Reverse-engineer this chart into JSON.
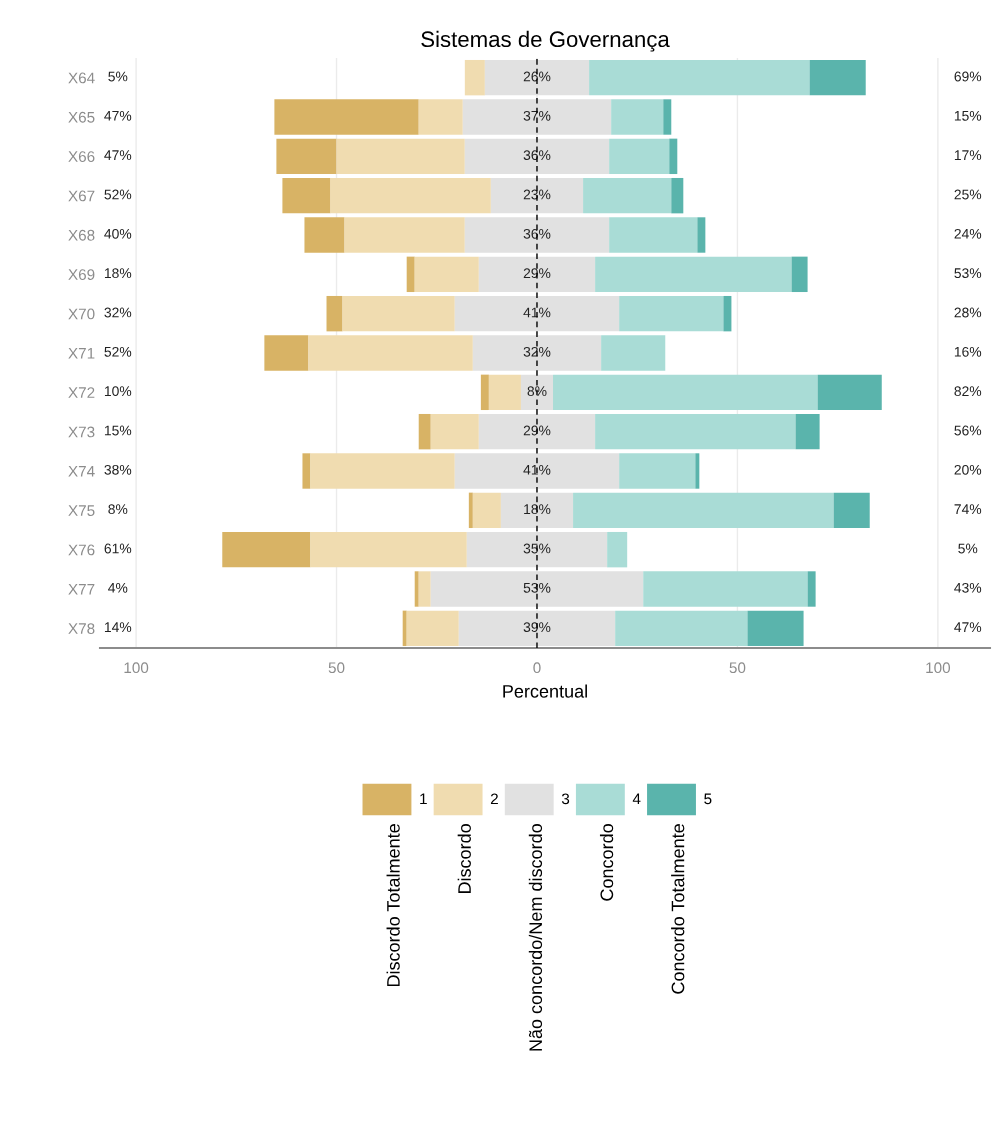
{
  "chart_data": {
    "type": "bar",
    "orientation": "horizontal",
    "title": "Sistemas de Governança",
    "xlabel": "Percentual",
    "categories": [
      "X64",
      "X65",
      "X66",
      "X67",
      "X68",
      "X69",
      "X70",
      "X71",
      "X72",
      "X73",
      "X74",
      "X75",
      "X76",
      "X77",
      "X78"
    ],
    "series": [
      {
        "name": "1",
        "color": "#d8b365",
        "values": [
          null,
          36,
          15,
          12,
          10,
          2,
          4,
          11,
          2,
          3,
          2,
          1,
          22,
          1,
          1
        ],
        "base": [
          null,
          -65.5,
          -65,
          -63.5,
          -58,
          -32.5,
          -52.5,
          -68,
          -14,
          -29.5,
          -58.5,
          -17,
          -78.5,
          -30.5,
          -33.5
        ]
      },
      {
        "name": "2",
        "color": "#f0dcb0",
        "values": [
          5,
          11,
          32,
          40,
          30,
          16,
          28,
          41,
          8,
          12,
          36,
          7,
          39,
          3,
          13
        ],
        "base": [
          -18,
          -29.5,
          -50,
          -51.5,
          -48,
          -30.5,
          -48.5,
          -57,
          -12,
          -26.5,
          -56.5,
          -16,
          -56.5,
          -29.5,
          -32.5
        ]
      },
      {
        "name": "3",
        "color": "#e1e1e1",
        "values": [
          26,
          37,
          36,
          23,
          36,
          29,
          41,
          32,
          8,
          29,
          41,
          18,
          35,
          53,
          39
        ],
        "base": [
          -13,
          -18.5,
          -18,
          -11.5,
          -18,
          -14.5,
          -20.5,
          -16,
          -4,
          -14.5,
          -20.5,
          -9,
          -17.5,
          -26.5,
          -19.5
        ],
        "value_labels": [
          "26%",
          "37%",
          "36%",
          "23%",
          "36%",
          "29%",
          "41%",
          "32%",
          "8%",
          "29%",
          "41%",
          "18%",
          "35%",
          "53%",
          "39%"
        ]
      },
      {
        "name": "4",
        "color": "#a9dcd6",
        "values": [
          55,
          13,
          15,
          22,
          22,
          49,
          26,
          16,
          66,
          50,
          19,
          65,
          5,
          41,
          33
        ],
        "base": [
          13,
          18.5,
          18,
          11.5,
          18,
          14.5,
          20.5,
          16,
          4,
          14.5,
          20.5,
          9,
          17.5,
          26.5,
          19.5
        ]
      },
      {
        "name": "5",
        "color": "#5ab4ac",
        "values": [
          14,
          2,
          2,
          3,
          2,
          4,
          2,
          null,
          16,
          6,
          1,
          9,
          null,
          2,
          14
        ],
        "base": [
          68,
          31.5,
          33,
          33.5,
          40,
          63.5,
          46.5,
          null,
          70,
          64.5,
          39.5,
          74,
          null,
          67.5,
          52.5
        ]
      }
    ],
    "xlim": [
      -109,
      113
    ],
    "xticks": [
      {
        "value": -100,
        "label": "100"
      },
      {
        "value": -50,
        "label": "50"
      },
      0,
      50,
      {
        "value": 100,
        "label": "100"
      }
    ],
    "grid": "x",
    "legend": "bottom",
    "ref_lines": [
      {
        "axis": "x",
        "value": 0,
        "color": "#000000",
        "line_style": "dashed"
      }
    ],
    "annotations": [
      "Discordo Totalmente",
      "Discordo",
      "Não concordo/Nem discordo",
      "Concordo",
      "Concordo Totalmente",
      "5%",
      "47%",
      "47%",
      "52%",
      "40%",
      "18%",
      "32%",
      "52%",
      "10%",
      "15%",
      "38%",
      "8%",
      "61%",
      "4%",
      "14%",
      "69%",
      "15%",
      "17%",
      "25%",
      "24%",
      "53%",
      "28%",
      "16%",
      "82%",
      "56%",
      "20%",
      "74%",
      "5%",
      "43%",
      "47%"
    ]
  }
}
